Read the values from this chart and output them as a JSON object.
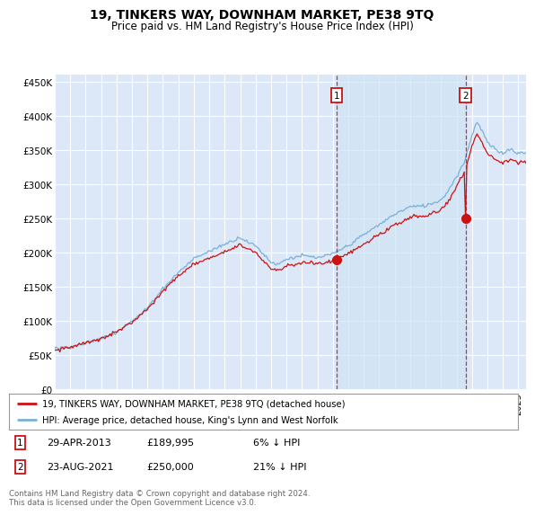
{
  "title": "19, TINKERS WAY, DOWNHAM MARKET, PE38 9TQ",
  "subtitle": "Price paid vs. HM Land Registry's House Price Index (HPI)",
  "background_color": "#ffffff",
  "plot_bg_color": "#dce8f8",
  "grid_color": "#ffffff",
  "ylim": [
    0,
    460000
  ],
  "yticks": [
    0,
    50000,
    100000,
    150000,
    200000,
    250000,
    300000,
    350000,
    400000,
    450000
  ],
  "ytick_labels": [
    "£0",
    "£50K",
    "£100K",
    "£150K",
    "£200K",
    "£250K",
    "£300K",
    "£350K",
    "£400K",
    "£450K"
  ],
  "hpi_color": "#7ab0d8",
  "price_color": "#cc1111",
  "shade_color": "#d0e4f5",
  "marker1_date_label": "29-APR-2013",
  "marker1_price": 189995,
  "marker1_pct": "6%",
  "marker2_date_label": "23-AUG-2021",
  "marker2_price": 250000,
  "marker2_pct": "21%",
  "legend_line1": "19, TINKERS WAY, DOWNHAM MARKET, PE38 9TQ (detached house)",
  "legend_line2": "HPI: Average price, detached house, King's Lynn and West Norfolk",
  "footer": "Contains HM Land Registry data © Crown copyright and database right 2024.\nThis data is licensed under the Open Government Licence v3.0."
}
